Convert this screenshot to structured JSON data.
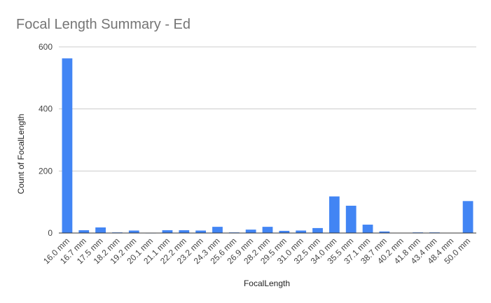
{
  "chart_data": {
    "type": "bar",
    "title": "Focal Length Summary - Ed",
    "xlabel": "FocalLength",
    "ylabel": "Count of FocalLength",
    "ylim": [
      0,
      600
    ],
    "yticks": [
      0,
      200,
      400,
      600
    ],
    "grid": true,
    "legend": "none",
    "bar_color": "#4285f4",
    "categories": [
      "16.0 mm",
      "16.7 mm",
      "17.5 mm",
      "18.2 mm",
      "19.2 mm",
      "20.1 mm",
      "21.1 mm",
      "22.2 mm",
      "23.2 mm",
      "24.3 mm",
      "25.6 mm",
      "26.9 mm",
      "28.2 mm",
      "29.5 mm",
      "31.0 mm",
      "32.5 mm",
      "34.0 mm",
      "35.5 mm",
      "37.1 mm",
      "38.7 mm",
      "40.2 mm",
      "41.8 mm",
      "43.4 mm",
      "48.4 mm",
      "50.0 mm"
    ],
    "values": [
      563,
      9,
      18,
      2,
      8,
      1,
      9,
      9,
      8,
      20,
      2,
      11,
      20,
      7,
      8,
      16,
      118,
      88,
      27,
      5,
      0,
      2,
      2,
      0,
      103
    ]
  }
}
